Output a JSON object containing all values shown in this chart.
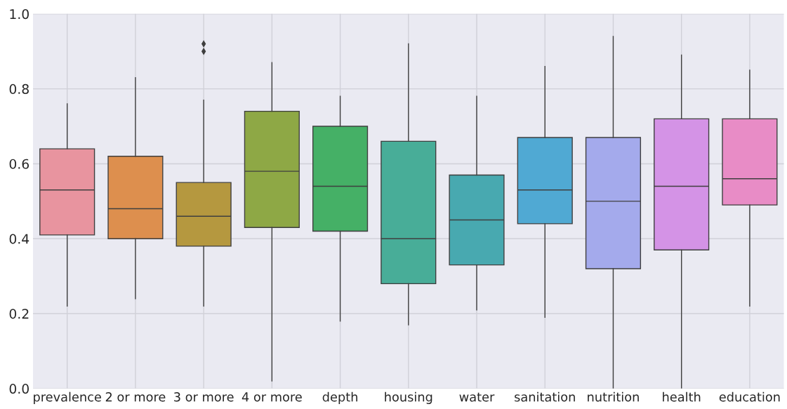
{
  "chart_data": {
    "type": "box",
    "categories": [
      "prevalence",
      "2 or more",
      "3 or more",
      "4 or more",
      "depth",
      "housing",
      "water",
      "sanitation",
      "nutrition",
      "health",
      "education"
    ],
    "colors": [
      "#e8949f",
      "#dd8f4e",
      "#b5983f",
      "#8ea845",
      "#45b066",
      "#48ad98",
      "#48a9b0",
      "#50a9d3",
      "#a4aaec",
      "#d493e6",
      "#e88cc6"
    ],
    "boxes": [
      {
        "low": 0.22,
        "q1": 0.41,
        "median": 0.53,
        "q3": 0.64,
        "high": 0.76
      },
      {
        "low": 0.24,
        "q1": 0.4,
        "median": 0.48,
        "q3": 0.62,
        "high": 0.83
      },
      {
        "low": 0.22,
        "q1": 0.38,
        "median": 0.46,
        "q3": 0.55,
        "high": 0.77,
        "outliers": [
          0.92,
          0.9
        ]
      },
      {
        "low": 0.02,
        "q1": 0.43,
        "median": 0.58,
        "q3": 0.74,
        "high": 0.87
      },
      {
        "low": 0.18,
        "q1": 0.42,
        "median": 0.54,
        "q3": 0.7,
        "high": 0.78
      },
      {
        "low": 0.17,
        "q1": 0.28,
        "median": 0.4,
        "q3": 0.66,
        "high": 0.92
      },
      {
        "low": 0.21,
        "q1": 0.33,
        "median": 0.45,
        "q3": 0.57,
        "high": 0.78
      },
      {
        "low": 0.19,
        "q1": 0.44,
        "median": 0.53,
        "q3": 0.67,
        "high": 0.86
      },
      {
        "low": 0.0,
        "q1": 0.32,
        "median": 0.5,
        "q3": 0.67,
        "high": 0.94
      },
      {
        "low": 0.0,
        "q1": 0.37,
        "median": 0.54,
        "q3": 0.72,
        "high": 0.89
      },
      {
        "low": 0.22,
        "q1": 0.49,
        "median": 0.56,
        "q3": 0.72,
        "high": 0.85
      }
    ],
    "ylim": [
      0,
      1
    ],
    "yticks": [
      {
        "value": 0,
        "label": "0.0"
      },
      {
        "value": 0.2,
        "label": "0.2"
      },
      {
        "value": 0.4,
        "label": "0.4"
      },
      {
        "value": 0.6,
        "label": "0.6"
      },
      {
        "value": 0.8,
        "label": "0.8"
      },
      {
        "value": 1.0,
        "label": "1.0"
      }
    ],
    "grid": true,
    "marker": "diamond"
  }
}
